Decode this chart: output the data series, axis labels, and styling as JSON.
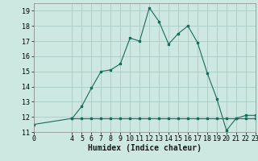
{
  "xlabel": "Humidex (Indice chaleur)",
  "background_color": "#cce8e0",
  "grid_color": "#aaccc4",
  "line_color": "#1a6b5a",
  "line1_x": [
    0,
    4,
    5,
    6,
    7,
    8,
    9,
    10,
    11,
    12,
    13,
    14,
    15,
    16,
    17,
    18,
    19,
    20,
    21,
    22,
    23
  ],
  "line1_y": [
    11.5,
    11.9,
    12.7,
    13.9,
    15.0,
    15.1,
    15.5,
    17.2,
    17.0,
    19.2,
    18.3,
    16.8,
    17.5,
    18.0,
    16.9,
    14.9,
    13.2,
    11.1,
    11.9,
    12.1,
    12.1
  ],
  "line2_x": [
    4,
    5,
    6,
    7,
    8,
    9,
    10,
    11,
    12,
    13,
    14,
    15,
    16,
    17,
    18,
    19,
    20,
    21,
    22,
    23
  ],
  "line2_y": [
    11.9,
    11.9,
    11.9,
    11.9,
    11.9,
    11.9,
    11.9,
    11.9,
    11.9,
    11.9,
    11.9,
    11.9,
    11.9,
    11.9,
    11.9,
    11.9,
    11.9,
    11.9,
    11.9,
    11.9
  ],
  "ylim": [
    11,
    19.5
  ],
  "xlim": [
    0,
    23
  ],
  "yticks": [
    11,
    12,
    13,
    14,
    15,
    16,
    17,
    18,
    19
  ],
  "xticks": [
    0,
    4,
    5,
    6,
    7,
    8,
    9,
    10,
    11,
    12,
    13,
    14,
    15,
    16,
    17,
    18,
    19,
    20,
    21,
    22,
    23
  ],
  "tick_fontsize": 6,
  "xlabel_fontsize": 7
}
